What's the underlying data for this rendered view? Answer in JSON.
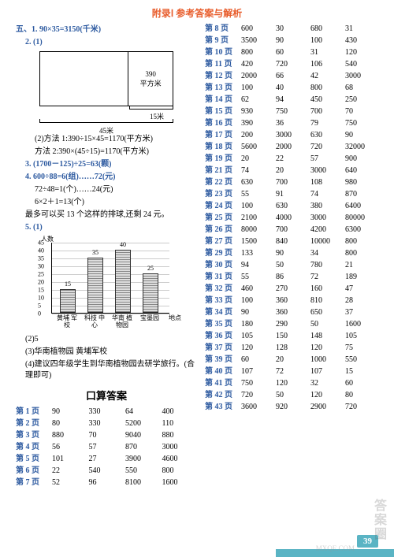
{
  "header": "附录Ⅰ  参考答案与解析",
  "left": {
    "q5_1": "五、1. 90×35=3150(千米)",
    "q2_label": "2. (1)",
    "diagram": {
      "area": "390",
      "unit": "平方米",
      "width15": "15米",
      "width45": "45米"
    },
    "q2_2a": "(2)方法 1:390÷15×45=1170(平方米)",
    "q2_2b": "方法 2:390×(45÷15)=1170(平方米)",
    "q3": "3. (1700－125)÷25=63(颗)",
    "q4a": "4. 600÷88=6(组)……72(元)",
    "q4b": "72÷48=1(个)……24(元)",
    "q4c": "6×2＋1=13(个)",
    "q4d": "最多可以买 13 个这样的排球,还剩 24 元。",
    "q5_label": "5. (1)",
    "chart": {
      "ylabel": "人数",
      "yticks": [
        0,
        5,
        10,
        15,
        20,
        25,
        30,
        35,
        40,
        45
      ],
      "categories": [
        "黄埔\n军校",
        "科技\n中心",
        "华南\n植物园",
        "宝墨园"
      ],
      "values": [
        15,
        35,
        40,
        25
      ],
      "xlabel": "地点"
    },
    "q5_2": "(2)5",
    "q5_3": "(3)华南植物园  黄埔军校",
    "q5_4": "(4)建议四年级学生到华南植物园去研学旅行。(合理即可)",
    "kousuan_title": "口算答案",
    "left_answers": [
      {
        "p": "第 1 页",
        "v": [
          "90",
          "330",
          "64",
          "400"
        ]
      },
      {
        "p": "第 2 页",
        "v": [
          "80",
          "330",
          "5200",
          "110"
        ]
      },
      {
        "p": "第 3 页",
        "v": [
          "880",
          "70",
          "9040",
          "880"
        ]
      },
      {
        "p": "第 4 页",
        "v": [
          "56",
          "57",
          "870",
          "3000"
        ]
      },
      {
        "p": "第 5 页",
        "v": [
          "101",
          "27",
          "3900",
          "4600"
        ]
      },
      {
        "p": "第 6 页",
        "v": [
          "22",
          "540",
          "550",
          "800"
        ]
      },
      {
        "p": "第 7 页",
        "v": [
          "52",
          "96",
          "8100",
          "1600"
        ]
      }
    ]
  },
  "right_answers": [
    {
      "p": "第 8 页",
      "v": [
        "600",
        "30",
        "680",
        "31"
      ]
    },
    {
      "p": "第 9 页",
      "v": [
        "3500",
        "90",
        "100",
        "430"
      ]
    },
    {
      "p": "第 10 页",
      "v": [
        "800",
        "60",
        "31",
        "120"
      ]
    },
    {
      "p": "第 11 页",
      "v": [
        "420",
        "720",
        "106",
        "540"
      ]
    },
    {
      "p": "第 12 页",
      "v": [
        "2000",
        "66",
        "42",
        "3000"
      ]
    },
    {
      "p": "第 13 页",
      "v": [
        "100",
        "40",
        "800",
        "68"
      ]
    },
    {
      "p": "第 14 页",
      "v": [
        "62",
        "94",
        "450",
        "250"
      ]
    },
    {
      "p": "第 15 页",
      "v": [
        "930",
        "750",
        "700",
        "70"
      ]
    },
    {
      "p": "第 16 页",
      "v": [
        "390",
        "36",
        "79",
        "750"
      ]
    },
    {
      "p": "第 17 页",
      "v": [
        "200",
        "3000",
        "630",
        "90"
      ]
    },
    {
      "p": "第 18 页",
      "v": [
        "5600",
        "2000",
        "720",
        "32000"
      ]
    },
    {
      "p": "第 19 页",
      "v": [
        "20",
        "22",
        "57",
        "900"
      ]
    },
    {
      "p": "第 21 页",
      "v": [
        "74",
        "20",
        "3000",
        "640"
      ]
    },
    {
      "p": "第 22 页",
      "v": [
        "630",
        "700",
        "108",
        "980"
      ]
    },
    {
      "p": "第 23 页",
      "v": [
        "55",
        "91",
        "74",
        "870"
      ]
    },
    {
      "p": "第 24 页",
      "v": [
        "100",
        "630",
        "380",
        "6400"
      ]
    },
    {
      "p": "第 25 页",
      "v": [
        "2100",
        "4000",
        "3000",
        "80000"
      ]
    },
    {
      "p": "第 26 页",
      "v": [
        "8000",
        "700",
        "4200",
        "6300"
      ]
    },
    {
      "p": "第 27 页",
      "v": [
        "1500",
        "840",
        "10000",
        "800"
      ]
    },
    {
      "p": "第 29 页",
      "v": [
        "133",
        "90",
        "34",
        "800"
      ]
    },
    {
      "p": "第 30 页",
      "v": [
        "94",
        "50",
        "780",
        "21"
      ]
    },
    {
      "p": "第 31 页",
      "v": [
        "55",
        "86",
        "72",
        "189"
      ]
    },
    {
      "p": "第 32 页",
      "v": [
        "460",
        "270",
        "160",
        "47"
      ]
    },
    {
      "p": "第 33 页",
      "v": [
        "100",
        "360",
        "810",
        "28"
      ]
    },
    {
      "p": "第 34 页",
      "v": [
        "90",
        "360",
        "650",
        "37"
      ]
    },
    {
      "p": "第 35 页",
      "v": [
        "180",
        "290",
        "50",
        "1600"
      ]
    },
    {
      "p": "第 36 页",
      "v": [
        "105",
        "150",
        "148",
        "105"
      ]
    },
    {
      "p": "第 37 页",
      "v": [
        "120",
        "128",
        "120",
        "75"
      ]
    },
    {
      "p": "第 39 页",
      "v": [
        "60",
        "20",
        "1000",
        "550"
      ]
    },
    {
      "p": "第 40 页",
      "v": [
        "107",
        "72",
        "107",
        "15"
      ]
    },
    {
      "p": "第 41 页",
      "v": [
        "750",
        "120",
        "32",
        "60"
      ]
    },
    {
      "p": "第 42 页",
      "v": [
        "720",
        "50",
        "120",
        "80"
      ]
    },
    {
      "p": "第 43 页",
      "v": [
        "3600",
        "920",
        "2900",
        "720"
      ]
    }
  ],
  "page_num": "39",
  "watermark": "答案圈",
  "watermark2": "MXQE.COM"
}
